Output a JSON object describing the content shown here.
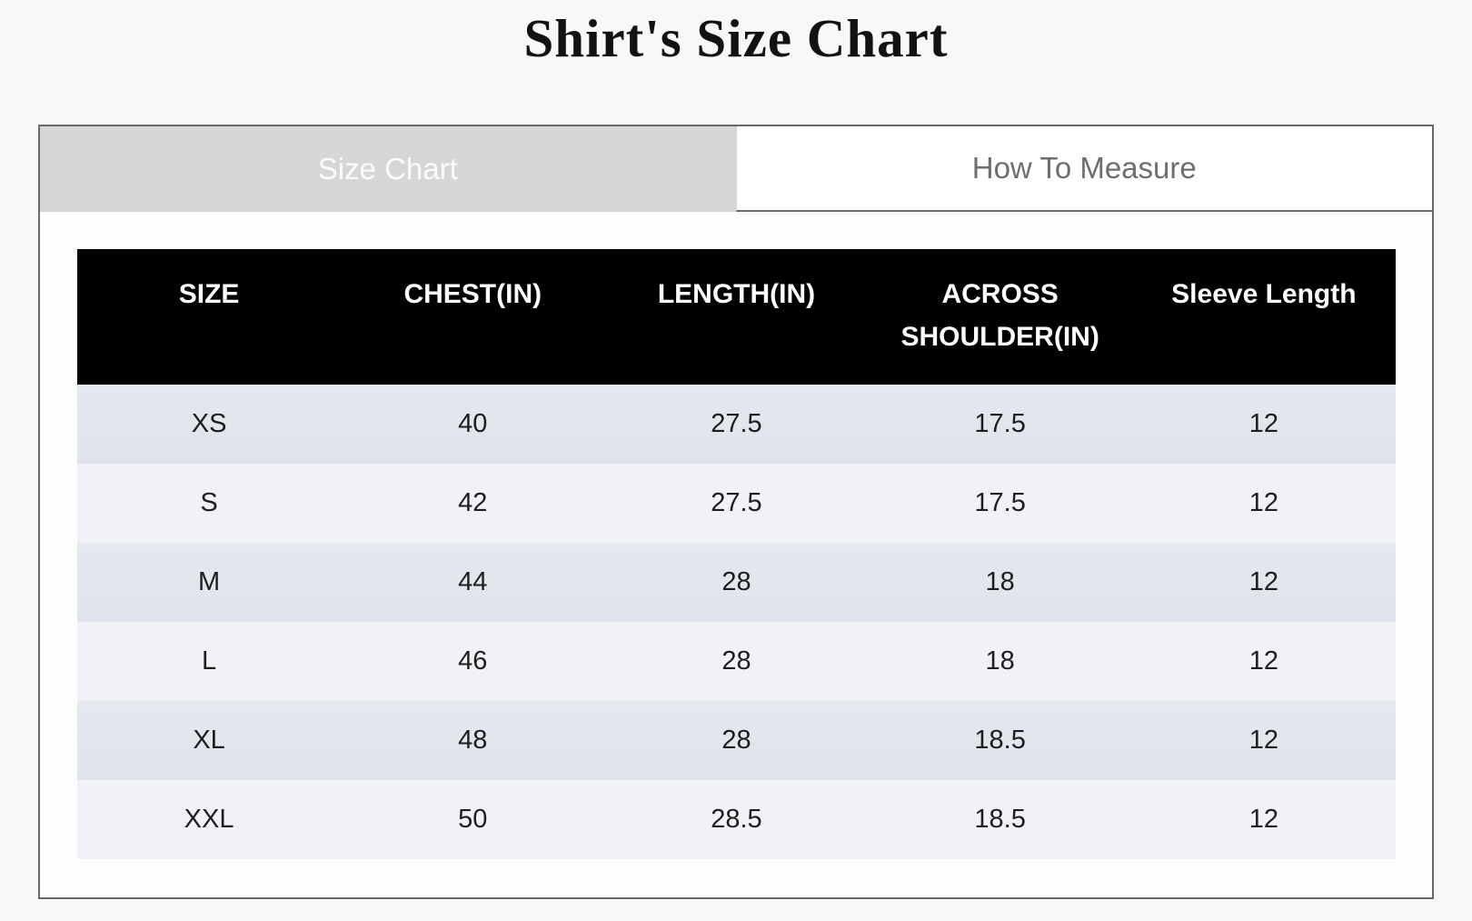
{
  "page": {
    "title": "Shirt's Size Chart"
  },
  "tabs": {
    "size_chart_label": "Size Chart",
    "how_to_measure_label": "How To Measure",
    "active_tab": "Size Chart"
  },
  "chart_data": {
    "type": "table",
    "title": "Shirt's Size Chart",
    "columns": [
      "SIZE",
      "CHEST(IN)",
      "LENGTH(IN)",
      "ACROSS SHOULDER(IN)",
      "Sleeve Length"
    ],
    "rows": [
      [
        "XS",
        "40",
        "27.5",
        "17.5",
        "12"
      ],
      [
        "S",
        "42",
        "27.5",
        "17.5",
        "12"
      ],
      [
        "M",
        "44",
        "28",
        "18",
        "12"
      ],
      [
        "L",
        "46",
        "28",
        "18",
        "12"
      ],
      [
        "XL",
        "48",
        "28",
        "18.5",
        "12"
      ],
      [
        "XXL",
        "50",
        "28.5",
        "18.5",
        "12"
      ]
    ]
  },
  "colors": {
    "page_background": "#f8f8f7",
    "panel_border": "#6a6a6a",
    "tab_active_background": "#d6d6d6",
    "tab_active_text": "#fbfbfb",
    "tab_inactive_background": "#ffffff",
    "tab_inactive_text": "#6e6e6e",
    "table_header_background": "#000000",
    "table_header_text": "#ffffff",
    "row_odd_background": "#e3e6ee",
    "row_even_background": "#f1f2f6",
    "cell_text": "#1e1e1e"
  }
}
